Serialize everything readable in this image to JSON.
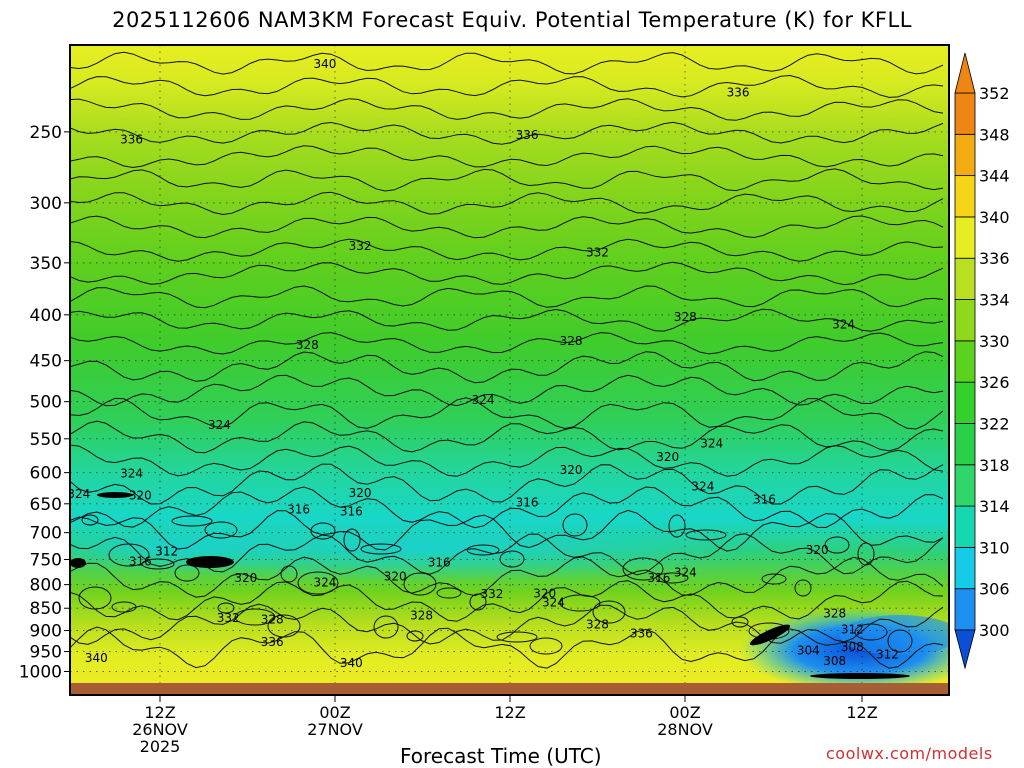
{
  "title": "2025112606 NAM3KM Forecast Equiv. Potential Temperature (K) for KFLL",
  "x_axis_title": "Forecast Time (UTC)",
  "credit": "coolwx.com/models",
  "chart_data": {
    "type": "heatmap",
    "y_axis": {
      "scale": "log-pressure",
      "tick_labels": [
        "250",
        "300",
        "350",
        "400",
        "450",
        "500",
        "550",
        "600",
        "650",
        "700",
        "750",
        "800",
        "850",
        "900",
        "950",
        "1000"
      ],
      "range": [
        1030,
        200
      ]
    },
    "x_axis": {
      "ticks": [
        {
          "label": [
            "12Z",
            "26NOV",
            "2025"
          ]
        },
        {
          "label": [
            "00Z",
            "27NOV"
          ]
        },
        {
          "label": [
            "12Z"
          ]
        },
        {
          "label": [
            "00Z",
            "28NOV"
          ]
        },
        {
          "label": [
            "12Z"
          ]
        }
      ]
    },
    "colorbar": {
      "levels": [
        300,
        306,
        310,
        314,
        318,
        322,
        326,
        330,
        334,
        336,
        340,
        344,
        348,
        352
      ],
      "colors": [
        "#0b4fd8",
        "#1d8ff0",
        "#16cbe8",
        "#14d8b0",
        "#2fd66a",
        "#2bd04a",
        "#34d02c",
        "#5bd21e",
        "#8fd81c",
        "#b8e020",
        "#e6ee22",
        "#f6d418",
        "#f2ac10",
        "#ef8614"
      ]
    },
    "contour_labels": [
      {
        "text": "340",
        "p": 210,
        "pos": 0.29
      },
      {
        "text": "336",
        "p": 226,
        "pos": 0.76
      },
      {
        "text": "336",
        "p": 255,
        "pos": 0.07
      },
      {
        "text": "336",
        "p": 252,
        "pos": 0.52
      },
      {
        "text": "332",
        "p": 335,
        "pos": 0.33
      },
      {
        "text": "332",
        "p": 341,
        "pos": 0.6
      },
      {
        "text": "328",
        "p": 432,
        "pos": 0.27
      },
      {
        "text": "328",
        "p": 428,
        "pos": 0.57
      },
      {
        "text": "328",
        "p": 402,
        "pos": 0.7
      },
      {
        "text": "324",
        "p": 410,
        "pos": 0.88
      },
      {
        "text": "324",
        "p": 498,
        "pos": 0.47
      },
      {
        "text": "324",
        "p": 531,
        "pos": 0.17
      },
      {
        "text": "324",
        "p": 557,
        "pos": 0.73
      },
      {
        "text": "324",
        "p": 601,
        "pos": 0.07
      },
      {
        "text": "324",
        "p": 634,
        "pos": 0.01
      },
      {
        "text": "320",
        "p": 636,
        "pos": 0.08
      },
      {
        "text": "320",
        "p": 596,
        "pos": 0.57
      },
      {
        "text": "320",
        "p": 576,
        "pos": 0.68
      },
      {
        "text": "324",
        "p": 622,
        "pos": 0.72
      },
      {
        "text": "320",
        "p": 632,
        "pos": 0.33
      },
      {
        "text": "316",
        "p": 660,
        "pos": 0.26
      },
      {
        "text": "316",
        "p": 663,
        "pos": 0.32
      },
      {
        "text": "316",
        "p": 648,
        "pos": 0.52
      },
      {
        "text": "316",
        "p": 643,
        "pos": 0.79
      },
      {
        "text": "312",
        "p": 735,
        "pos": 0.11
      },
      {
        "text": "316",
        "p": 754,
        "pos": 0.08
      },
      {
        "text": "320",
        "p": 786,
        "pos": 0.2
      },
      {
        "text": "324",
        "p": 796,
        "pos": 0.29
      },
      {
        "text": "320",
        "p": 783,
        "pos": 0.37
      },
      {
        "text": "316",
        "p": 756,
        "pos": 0.42
      },
      {
        "text": "316",
        "p": 786,
        "pos": 0.67
      },
      {
        "text": "324",
        "p": 775,
        "pos": 0.7
      },
      {
        "text": "320",
        "p": 732,
        "pos": 0.85
      },
      {
        "text": "332",
        "p": 820,
        "pos": 0.48
      },
      {
        "text": "320",
        "p": 818,
        "pos": 0.54
      },
      {
        "text": "324",
        "p": 838,
        "pos": 0.55
      },
      {
        "text": "332",
        "p": 872,
        "pos": 0.18
      },
      {
        "text": "328",
        "p": 875,
        "pos": 0.23
      },
      {
        "text": "328",
        "p": 866,
        "pos": 0.4
      },
      {
        "text": "328",
        "p": 886,
        "pos": 0.6
      },
      {
        "text": "336",
        "p": 907,
        "pos": 0.65
      },
      {
        "text": "336",
        "p": 927,
        "pos": 0.23
      },
      {
        "text": "328",
        "p": 862,
        "pos": 0.87
      },
      {
        "text": "312",
        "p": 898,
        "pos": 0.89
      },
      {
        "text": "308",
        "p": 939,
        "pos": 0.89
      },
      {
        "text": "304",
        "p": 948,
        "pos": 0.84
      },
      {
        "text": "312",
        "p": 957,
        "pos": 0.93
      },
      {
        "text": "308",
        "p": 974,
        "pos": 0.87
      },
      {
        "text": "340",
        "p": 966,
        "pos": 0.03
      },
      {
        "text": "340",
        "p": 978,
        "pos": 0.32
      }
    ]
  }
}
